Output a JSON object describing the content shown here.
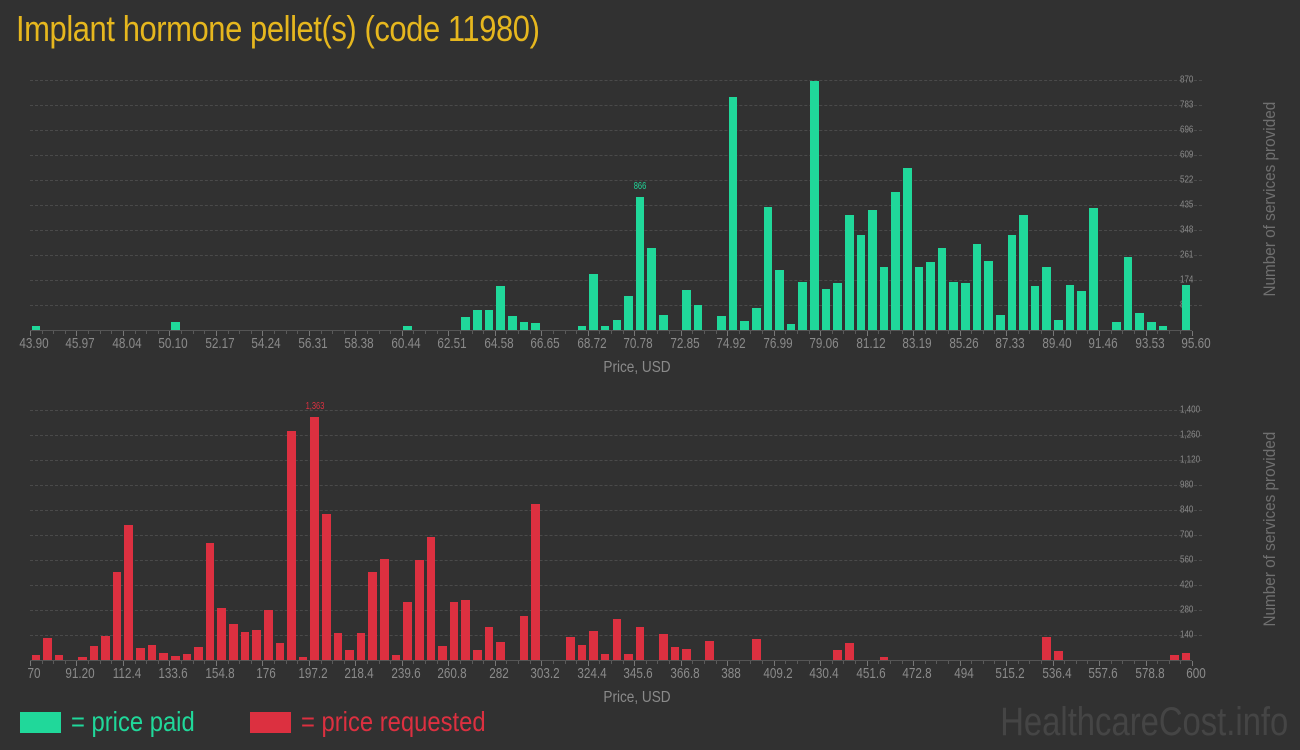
{
  "title": "Implant hormone pellet(s) (code 11980)",
  "colors": {
    "paid": "#20d89a",
    "requested": "#dc3040",
    "title": "#e6b71e",
    "background": "#313131"
  },
  "legend": {
    "paid_label": "= price paid",
    "requested_label": "= price requested"
  },
  "watermark": "HealthcareCost.info",
  "chart_data": [
    {
      "type": "bar",
      "title": "Price paid",
      "xlabel": "Price, USD",
      "ylabel": "Number of services provided",
      "ylim": [
        0,
        870
      ],
      "yticks": [
        87,
        174,
        261,
        348,
        435,
        522,
        609,
        696,
        783,
        870
      ],
      "ytick_labels": [
        "87",
        "174",
        "261",
        "348",
        "435",
        "522",
        "609",
        "696",
        "783",
        "870"
      ],
      "xtick_labels": [
        "43.90",
        "45.97",
        "48.04",
        "50.10",
        "52.17",
        "54.24",
        "56.31",
        "58.38",
        "60.44",
        "62.51",
        "64.58",
        "66.65",
        "68.72",
        "70.78",
        "72.85",
        "74.92",
        "76.99",
        "79.06",
        "81.12",
        "83.19",
        "85.26",
        "87.33",
        "89.40",
        "91.46",
        "93.53",
        "95.60"
      ],
      "xrange": [
        43.9,
        95.6
      ],
      "bins": 100,
      "peak_label": "866",
      "peak_index": 52,
      "grid": true,
      "values": [
        14,
        0,
        0,
        0,
        0,
        0,
        0,
        0,
        0,
        0,
        0,
        0,
        28,
        0,
        0,
        0,
        0,
        0,
        0,
        0,
        0,
        0,
        0,
        0,
        0,
        0,
        0,
        0,
        0,
        0,
        0,
        0,
        14,
        0,
        0,
        0,
        0,
        45,
        70,
        70,
        153,
        49,
        28,
        24,
        0,
        0,
        0,
        14,
        195,
        14,
        35,
        118,
        463,
        285,
        52,
        0,
        139,
        87,
        0,
        49,
        811,
        31,
        77,
        428,
        209,
        21,
        167,
        866,
        143,
        164,
        400,
        331,
        418,
        219,
        480,
        564,
        219,
        237,
        285,
        167,
        164,
        299,
        240,
        52,
        331,
        299,
        97,
        73,
        118,
        355,
        463,
        511,
        90,
        303,
        83,
        191,
        250,
        17,
        77,
        52
      ],
      "values_tail": [
        400,
        153,
        219,
        35,
        157,
        136,
        425,
        0,
        28,
        254,
        59,
        28,
        14,
        0,
        157
      ],
      "note": "values has 100 bins mapping 43.90–95.60; final 15 bins listed in values_tail override positions 85-99"
    },
    {
      "type": "bar",
      "title": "Price requested",
      "xlabel": "Price, USD",
      "ylabel": "Number of services provided",
      "ylim": [
        0,
        1400
      ],
      "yticks": [
        140,
        280,
        420,
        560,
        700,
        840,
        980,
        1120,
        1260,
        1400
      ],
      "ytick_labels": [
        "140",
        "280",
        "420",
        "560",
        "700",
        "840",
        "980",
        "1,120",
        "1,260",
        "1,400"
      ],
      "xtick_labels": [
        "70",
        "91.20",
        "112.4",
        "133.6",
        "154.8",
        "176",
        "197.2",
        "218.4",
        "239.6",
        "260.8",
        "282",
        "303.2",
        "324.4",
        "345.6",
        "366.8",
        "388",
        "409.2",
        "430.4",
        "451.6",
        "472.8",
        "494",
        "515.2",
        "536.4",
        "557.6",
        "578.8",
        "600"
      ],
      "xrange": [
        70,
        600
      ],
      "bins": 100,
      "peak_label": "1,363",
      "peak_index": 24,
      "grid": true,
      "values": [
        30,
        125,
        30,
        0,
        19,
        80,
        136,
        494,
        757,
        69,
        86,
        41,
        24,
        35,
        75,
        657,
        293,
        203,
        159,
        170,
        282,
        97,
        1284,
        19,
        1363,
        820,
        153,
        58,
        153,
        494,
        567,
        30,
        327,
        562,
        690,
        80,
        327,
        338,
        58,
        187,
        103,
        0,
        248,
        875,
        0,
        0,
        131,
        86,
        164,
        35,
        231,
        35,
        187,
        0,
        147,
        75,
        63,
        0,
        108,
        0,
        0,
        0,
        120,
        0,
        0,
        0,
        0,
        0,
        0,
        54,
        93,
        0,
        0,
        15,
        0,
        0,
        0,
        0,
        0,
        0,
        0,
        0,
        0,
        0,
        0,
        0,
        0,
        127,
        0,
        0,
        0,
        0,
        0,
        0,
        0,
        0,
        0,
        0,
        0,
        0
      ],
      "values_tail": [
        49,
        0,
        0,
        0,
        0,
        0,
        0,
        0,
        0,
        0,
        26,
        37
      ],
      "note": "final bins: 536.4 region bar ~49, last two bars ~26 and ~37"
    }
  ]
}
